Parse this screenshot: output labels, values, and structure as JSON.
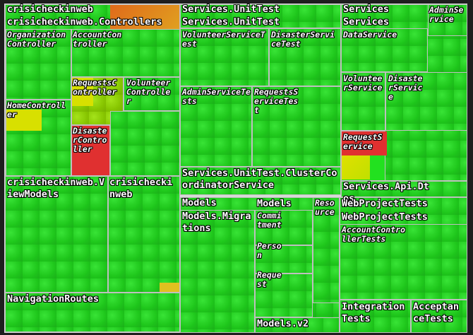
{
  "colors": {
    "green": "#22e11f",
    "yellow": "#c8e000",
    "orange": "#e08a1a",
    "red": "#e03030",
    "border": "#d8d8d8"
  },
  "labels": {
    "crisicheckinweb": "crisicheckinweb",
    "controllers": "crisicheckinweb.Controllers",
    "organization_controller": "OrganizationController",
    "account_controller": "AccountController",
    "requests_controller": "RequestsController",
    "volunteer_controller": "VolunteerController",
    "home_controller": "HomeController",
    "disaster_controller": "DisasterController",
    "view_models": "crisicheckinweb.ViewModels",
    "crisicheckinweb_small": "crisicheckinweb",
    "navigation_routes": "NavigationRoutes",
    "services_unittest": "Services.UnitTest",
    "services_unittest_2": "Services.UnitTest",
    "volunteer_service_test": "VolunteerServiceTest",
    "disaster_service_test": "DisasterServiceTest",
    "admin_service_tests": "AdminServiceTests",
    "requests_service_test": "RequestsServiceTest",
    "cluster_coordinator_service": "Services.UnitTest.ClusterCoordinatorService",
    "services": "Services",
    "services_2": "Services",
    "admin_service": "AdminService",
    "data_service": "DataService",
    "volunteer_service": "VolunteerService",
    "disaster_service": "DisasterService",
    "request_service": "RequestService",
    "services_api": "Services.Api.Dtos",
    "models": "Models",
    "models_migrations": "Models.Migrations",
    "models_inner": "Models",
    "commitment": "Commitment",
    "resource": "Resource",
    "person": "Person",
    "request": "Request",
    "models_v2": "Models.v2",
    "web_project_tests": "WebProjectTests",
    "web_project_tests_2": "WebProjectTests",
    "account_controller_tests": "AccountControllerTests",
    "integration_tests": "IntegrationTests",
    "acceptance_tests": "AcceptanceTests"
  }
}
